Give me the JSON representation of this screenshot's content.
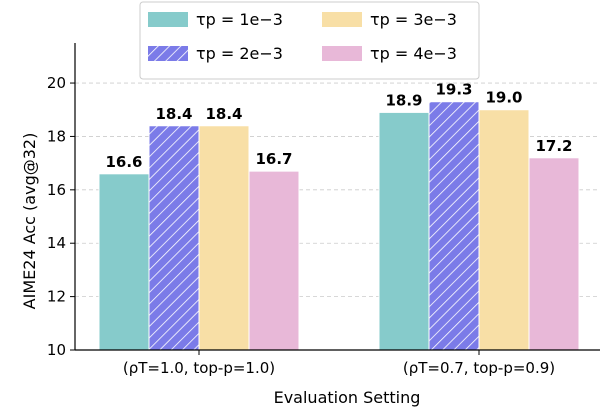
{
  "chart_data": {
    "type": "bar",
    "categories": [
      "(ρT=1.0, top-p=1.0)",
      "(ρT=0.7, top-p=0.9)"
    ],
    "series": [
      {
        "name": "τp = 1e−3",
        "values": [
          16.6,
          18.9
        ],
        "color": "#86cbcb",
        "hatch": false
      },
      {
        "name": "τp = 2e−3",
        "values": [
          18.4,
          19.3
        ],
        "color": "#7b7be8",
        "hatch": true
      },
      {
        "name": "τp = 3e−3",
        "values": [
          18.4,
          19.0
        ],
        "color": "#f8dfa6",
        "hatch": false
      },
      {
        "name": "τp = 4e−3",
        "values": [
          16.7,
          17.2
        ],
        "color": "#e8b8d8",
        "hatch": false
      }
    ],
    "data_labels": [
      [
        "16.6",
        "18.9"
      ],
      [
        "18.4",
        "19.3"
      ],
      [
        "18.4",
        "19.0"
      ],
      [
        "16.7",
        "17.2"
      ]
    ],
    "xlabel": "Evaluation Setting",
    "ylabel": "AIME24 Acc (avg@32)",
    "ylim": [
      10,
      21.5
    ],
    "yticks": [
      10,
      12,
      14,
      16,
      18,
      20
    ],
    "ytick_labels": [
      "10",
      "12",
      "14",
      "16",
      "18",
      "20"
    ],
    "grid": true,
    "legend_position": "top-center"
  }
}
